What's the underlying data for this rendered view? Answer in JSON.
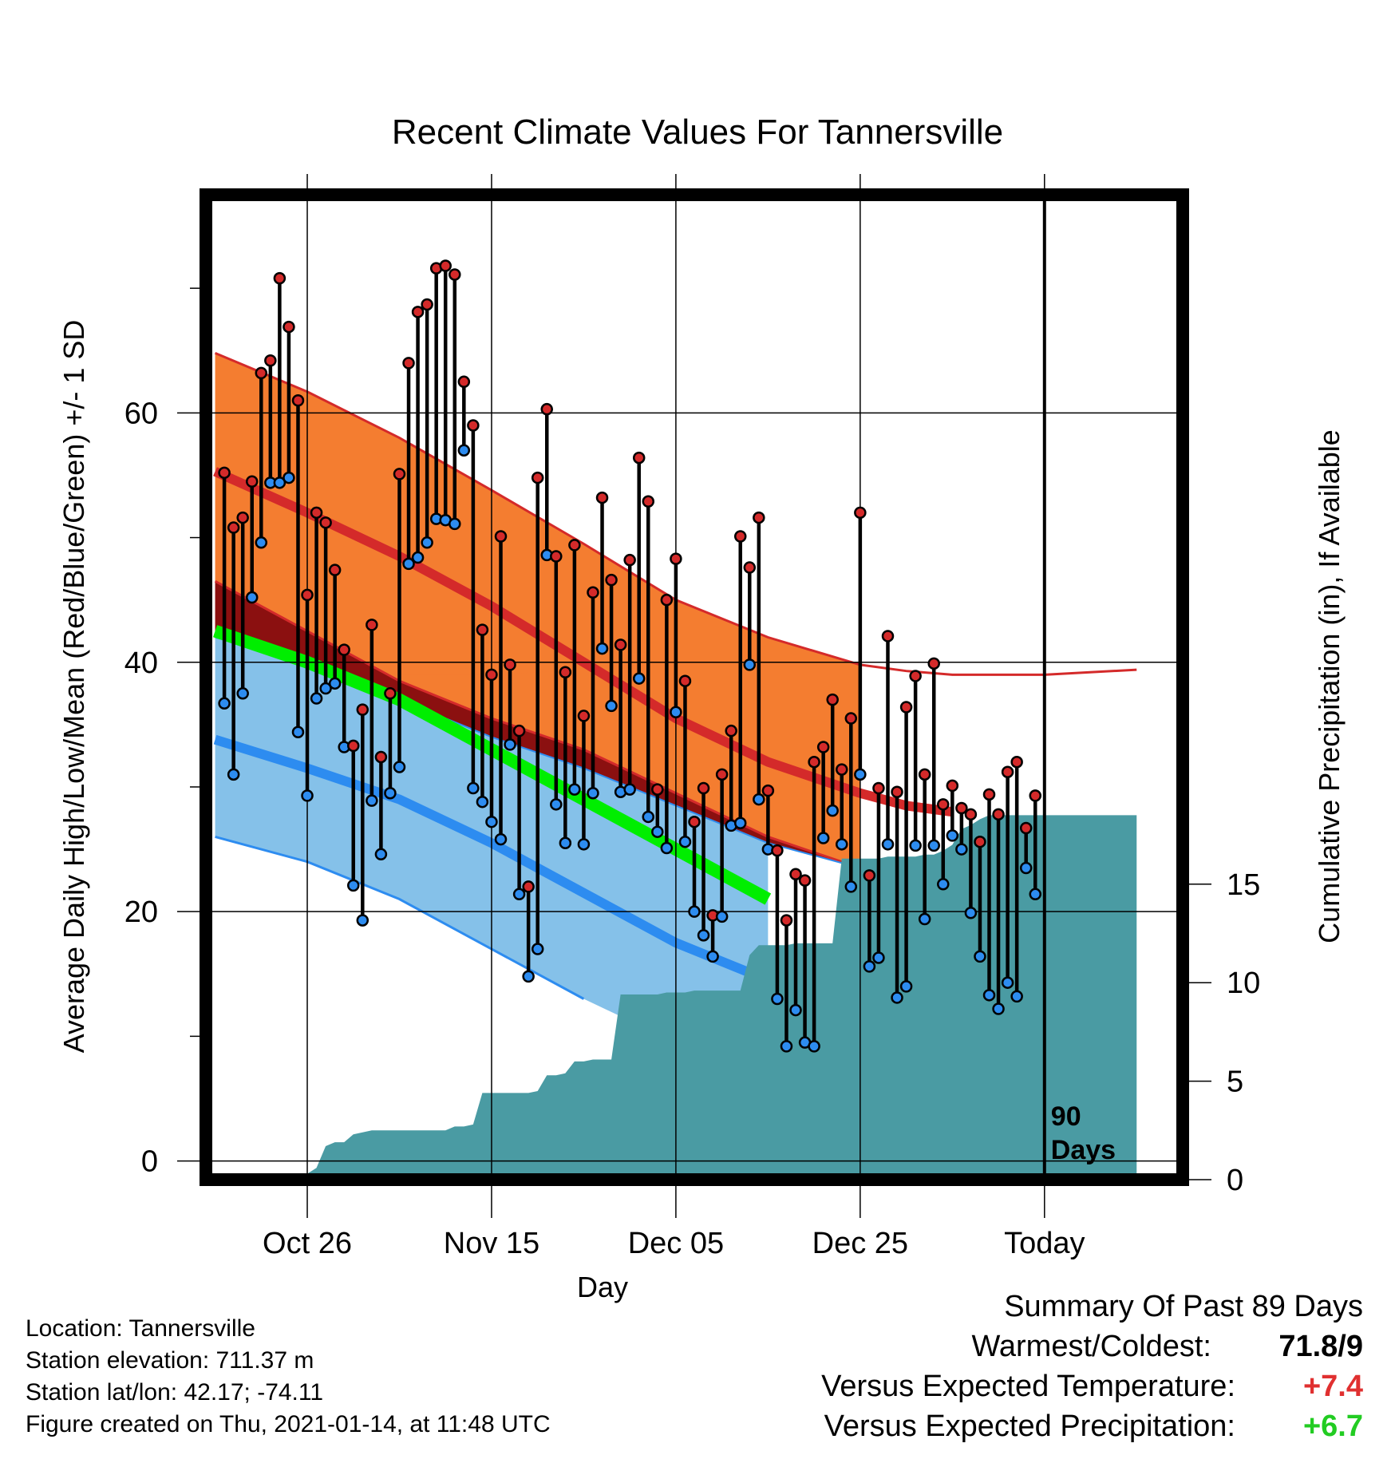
{
  "chart_data": {
    "type": "line",
    "title": "Recent Climate Values For Tannersville",
    "xlabel": "Day",
    "ylabel_left": "Average Daily High/Low/Mean (Red/Blue/Green) +/- 1 SD",
    "ylabel_right": "Cumulative Precipitation (in), If Available",
    "x_ticks": [
      "Oct 26",
      "Nov 15",
      "Dec 05",
      "Dec 25",
      "Today"
    ],
    "x_tick_days": [
      10,
      30,
      50,
      70,
      90
    ],
    "x_range": [
      -1,
      105
    ],
    "y_left_ticks": [
      0,
      20,
      40,
      60
    ],
    "y_left_range": [
      -1.5,
      77.5
    ],
    "y_right_ticks": [
      0,
      5,
      10,
      15
    ],
    "y_right_range": [
      0,
      50
    ],
    "today_label": [
      "90",
      "Days"
    ],
    "grid": true,
    "normals": {
      "days": [
        0,
        10,
        20,
        30,
        40,
        50,
        60,
        70,
        75,
        80,
        90,
        100
      ],
      "high_mean": [
        55.3,
        52,
        48.5,
        44.5,
        40,
        35.5,
        32,
        29.5,
        28.5,
        28,
        28.2,
        28.5
      ],
      "high_upper": [
        64.8,
        61.7,
        58,
        53.8,
        49.5,
        45,
        42,
        39.8,
        39.3,
        39,
        39,
        39.4
      ],
      "high_lower": [
        46.5,
        42.5,
        38.5,
        35.5,
        33,
        29.5,
        26,
        23.5,
        0,
        0,
        0,
        0
      ],
      "mean": [
        42.5,
        40,
        37,
        33,
        29,
        25,
        21,
        19,
        0,
        0,
        0,
        0
      ],
      "low_mean": [
        33.8,
        31.5,
        29,
        25.5,
        21.5,
        17.5,
        14.5,
        0,
        0,
        0,
        0,
        0
      ],
      "low_upper": [
        42,
        40,
        37,
        34,
        31.5,
        28.5,
        25.5,
        23.5,
        0,
        0,
        0,
        0
      ],
      "low_lower": [
        26,
        24,
        21,
        17,
        13,
        9.5,
        0,
        0,
        0,
        0,
        0,
        0
      ]
    },
    "series": [
      {
        "name": "High",
        "values": [
          55.2,
          50.8,
          51.6,
          54.5,
          63.2,
          64.2,
          70.8,
          66.9,
          61.0,
          45.4,
          52.0,
          51.2,
          47.4,
          41.0,
          33.3,
          36.2,
          43.0,
          32.4,
          37.5,
          55.1,
          64.0,
          68.1,
          68.7,
          71.6,
          71.8,
          71.1,
          62.5,
          59.0,
          42.6,
          39.0,
          50.1,
          39.8,
          34.5,
          22.0,
          54.8,
          60.3,
          48.5,
          39.2,
          49.4,
          35.7,
          45.6,
          53.2,
          46.6,
          41.4,
          48.2,
          56.4,
          52.9,
          29.8,
          45.0,
          48.3,
          38.5,
          27.2,
          29.9,
          19.7,
          31.0,
          34.5,
          50.1,
          47.6,
          51.6,
          29.7,
          24.9,
          19.3,
          23.0,
          22.5,
          32.0,
          33.2,
          37.0,
          31.4,
          35.5,
          52.0,
          22.9,
          29.9,
          42.1,
          29.6,
          36.4,
          38.9,
          31.0,
          39.9,
          28.6,
          30.1,
          28.3,
          27.8,
          25.6,
          29.4,
          27.8,
          31.2,
          32.0,
          26.7,
          29.3
        ]
      },
      {
        "name": "Low",
        "values": [
          36.7,
          31.0,
          37.5,
          45.2,
          49.6,
          54.4,
          54.4,
          54.8,
          34.4,
          29.3,
          37.1,
          37.9,
          38.3,
          33.2,
          22.1,
          19.3,
          28.9,
          24.6,
          29.5,
          31.6,
          47.9,
          48.4,
          49.6,
          51.5,
          51.4,
          51.1,
          57.0,
          29.9,
          28.8,
          27.2,
          25.8,
          33.4,
          21.4,
          14.8,
          17.0,
          48.6,
          28.6,
          25.5,
          29.8,
          25.4,
          29.5,
          41.1,
          36.5,
          29.6,
          29.8,
          38.7,
          27.6,
          26.4,
          25.1,
          36.0,
          25.6,
          20.0,
          18.1,
          16.4,
          19.6,
          26.9,
          27.1,
          39.8,
          29.0,
          25.0,
          13.0,
          9.2,
          12.1,
          9.5,
          9.2,
          25.9,
          28.1,
          25.4,
          22.0,
          31.0,
          15.6,
          16.3,
          25.4,
          13.1,
          14.0,
          25.3,
          19.4,
          25.3,
          22.2,
          26.1,
          25.0,
          19.9,
          16.4,
          13.3,
          12.2,
          14.3,
          13.2,
          23.5,
          21.4
        ]
      }
    ],
    "precipitation": {
      "days": [
        0,
        9,
        10,
        11,
        12,
        13,
        14,
        15,
        16,
        17,
        18,
        19,
        20,
        21,
        22,
        23,
        24,
        25,
        26,
        27,
        28,
        29,
        30,
        31,
        32,
        33,
        34,
        35,
        36,
        37,
        38,
        39,
        40,
        41,
        42,
        43,
        44,
        45,
        46,
        47,
        48,
        49,
        50,
        51,
        52,
        53,
        54,
        55,
        56,
        57,
        58,
        59,
        60,
        61,
        62,
        63,
        64,
        65,
        66,
        67,
        68,
        69,
        70,
        71,
        72,
        73,
        74,
        75,
        76,
        77,
        78,
        79,
        80,
        81,
        82,
        83,
        84,
        85,
        86,
        87,
        88,
        89,
        90,
        100
      ],
      "values": [
        0,
        0,
        0.3,
        0.6,
        1.7,
        1.9,
        1.9,
        2.3,
        2.4,
        2.5,
        2.5,
        2.5,
        2.5,
        2.5,
        2.5,
        2.5,
        2.5,
        2.5,
        2.7,
        2.7,
        2.8,
        4.4,
        4.4,
        4.4,
        4.4,
        4.4,
        4.4,
        4.5,
        5.3,
        5.3,
        5.4,
        6.0,
        6.0,
        6.1,
        6.1,
        6.1,
        9.4,
        9.4,
        9.4,
        9.4,
        9.4,
        9.5,
        9.5,
        9.5,
        9.6,
        9.6,
        9.6,
        9.6,
        9.6,
        9.6,
        11.4,
        11.9,
        11.9,
        11.9,
        11.9,
        12.0,
        12.0,
        12.0,
        12.0,
        12.0,
        16.3,
        16.3,
        16.3,
        16.3,
        16.3,
        16.4,
        16.4,
        16.4,
        16.4,
        16.5,
        16.5,
        16.7,
        17.0,
        17.8,
        18.0,
        18.3,
        18.5,
        18.5,
        18.5,
        18.5,
        18.5,
        18.5,
        18.5,
        18.5
      ]
    }
  },
  "info": {
    "location": "Location: Tannersville",
    "elevation": "Station elevation: 711.37 m",
    "latlon": "Station lat/lon: 42.17; -74.11",
    "created": "Figure created on Thu, 2021-01-14, at 11:48 UTC"
  },
  "summary": {
    "heading": "Summary Of Past 89 Days",
    "warm_cold_label": "Warmest/Coldest:",
    "warm_cold_value": "71.8/9",
    "temp_label": "Versus Expected Temperature:",
    "temp_value": "+7.4",
    "precip_label": "Versus Expected Precipitation:",
    "precip_value": "+6.7"
  },
  "colors": {
    "high_band": "#F47D30",
    "high_line": "#D42A2A",
    "mean_line": "#00EE00",
    "low_band": "#85C1E9",
    "low_line": "#2D8CF0",
    "overlap_band": "#8B1010",
    "precip": "#4A9BA3",
    "high_dot": "#D42A2A",
    "low_dot": "#2D8CF0",
    "temp_value": "#E03030",
    "precip_value": "#22CC22"
  }
}
